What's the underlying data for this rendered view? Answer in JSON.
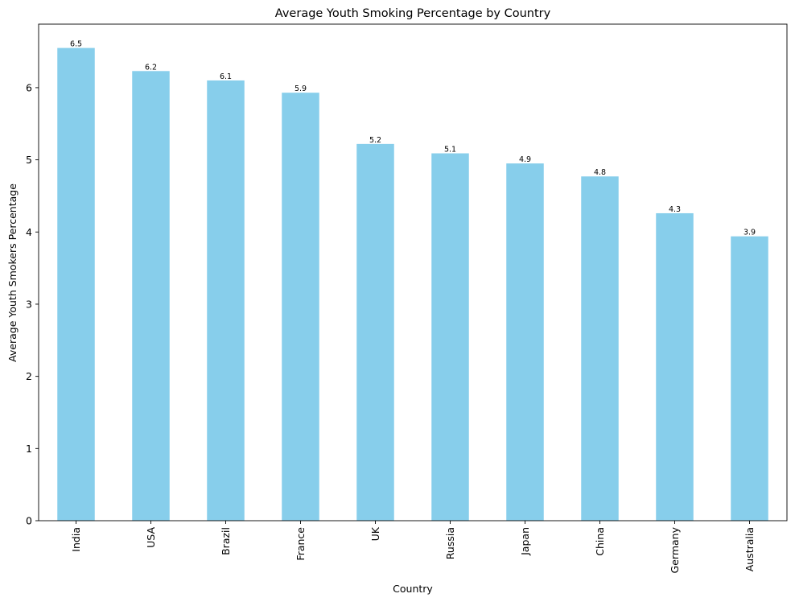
{
  "chart_data": {
    "type": "bar",
    "title": "Average Youth Smoking Percentage by Country",
    "xlabel": "Country",
    "ylabel": "Average Youth Smokers Percentage",
    "categories": [
      "India",
      "USA",
      "Brazil",
      "France",
      "UK",
      "Russia",
      "Japan",
      "China",
      "Germany",
      "Australia"
    ],
    "values": [
      6.55,
      6.23,
      6.1,
      5.93,
      5.22,
      5.09,
      4.95,
      4.77,
      4.26,
      3.94
    ],
    "data_labels": [
      "6.5",
      "6.2",
      "6.1",
      "5.9",
      "5.2",
      "5.1",
      "4.9",
      "4.8",
      "4.3",
      "3.9"
    ],
    "ylim": [
      0,
      6.88
    ],
    "yticks": [
      0,
      1,
      2,
      3,
      4,
      5,
      6
    ],
    "bar_color": "#87ceeb",
    "grid": false,
    "legend": "none"
  }
}
